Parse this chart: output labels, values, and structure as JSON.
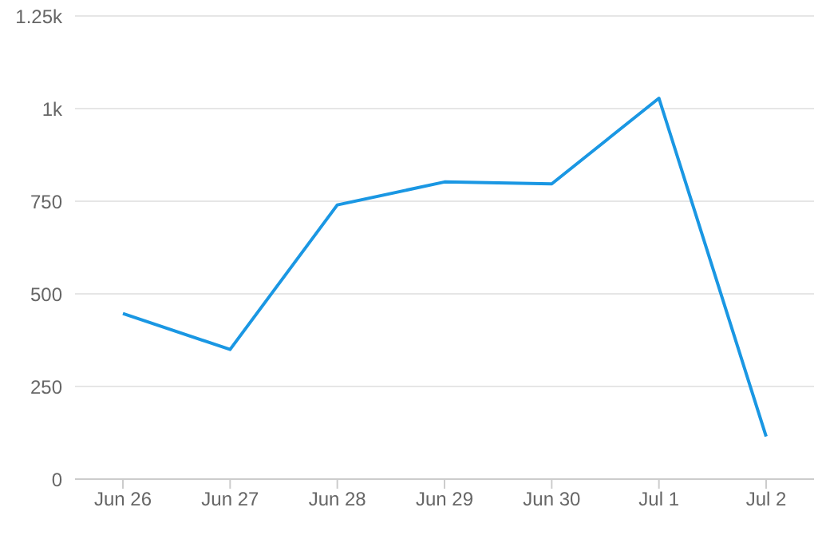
{
  "chart_data": {
    "type": "line",
    "categories": [
      "Jun 26",
      "Jun 27",
      "Jun 28",
      "Jun 29",
      "Jun 30",
      "Jul 1",
      "Jul 2"
    ],
    "series": [
      {
        "color": "#1a97e3",
        "values": [
          447,
          350,
          740,
          802,
          797,
          1028,
          115
        ]
      }
    ],
    "ylim": [
      0,
      1250
    ],
    "yticks": [
      0,
      250,
      500,
      750,
      {
        "value": 1000,
        "label": "1k"
      },
      {
        "value": 1250,
        "label": "1.25k"
      }
    ],
    "grid": "y",
    "legend": false,
    "marker": "none",
    "line_style": "solid"
  }
}
